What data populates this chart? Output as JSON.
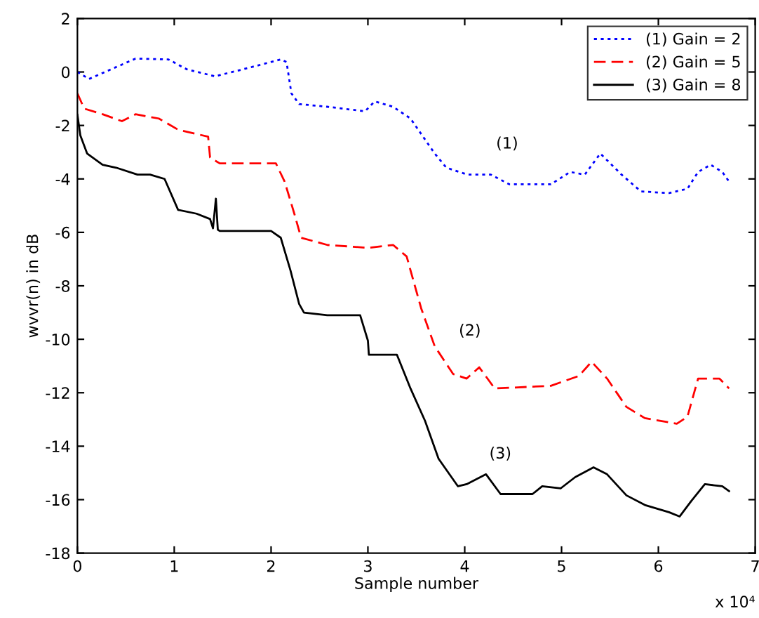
{
  "chart_data": {
    "type": "line",
    "xlabel": "Sample number",
    "ylabel": "wvvr(n) in dB",
    "xlim": [
      0,
      7
    ],
    "xticks": [
      0,
      1,
      2,
      3,
      4,
      5,
      6,
      7
    ],
    "ylim": [
      -18,
      2
    ],
    "yticks": [
      -18,
      -16,
      -14,
      -12,
      -10,
      -8,
      -6,
      -4,
      -2,
      0,
      2
    ],
    "grid": false,
    "legend": "top right",
    "marker": "none",
    "annotations": [
      "(1)",
      "(2)",
      "(3)",
      "x 10⁴"
    ],
    "series": [
      {
        "name": "(1) Gain = 2",
        "color": "#0000ff",
        "line_style": "dotted",
        "x": [
          0,
          0.12,
          0.6,
          0.94,
          1.13,
          1.42,
          1.71,
          2.1,
          2.16,
          2.21,
          2.29,
          2.58,
          2.97,
          3.07,
          3.26,
          3.44,
          3.69,
          3.81,
          4.03,
          4.27,
          4.46,
          4.89,
          5.09,
          5.24,
          5.4,
          5.62,
          5.82,
          6.11,
          6.3,
          6.41,
          6.54,
          6.66,
          6.73
        ],
        "values": [
          0,
          -0.26,
          0.5,
          0.47,
          0.1,
          -0.16,
          0.1,
          0.47,
          0.37,
          -0.8,
          -1.2,
          -1.3,
          -1.47,
          -1.1,
          -1.3,
          -1.74,
          -3.05,
          -3.58,
          -3.84,
          -3.84,
          -4.2,
          -4.2,
          -3.74,
          -3.84,
          -3.05,
          -3.84,
          -4.47,
          -4.53,
          -4.37,
          -3.74,
          -3.47,
          -3.74,
          -4.1
        ]
      },
      {
        "name": "(2) Gain = 5",
        "color": "#ff0000",
        "line_style": "dashed",
        "x": [
          0,
          0.07,
          0.26,
          0.46,
          0.6,
          0.84,
          1.04,
          1.35,
          1.37,
          1.47,
          2.05,
          2.14,
          2.24,
          2.31,
          2.58,
          3.01,
          3.26,
          3.4,
          3.55,
          3.69,
          3.88,
          4.02,
          4.15,
          4.31,
          4.89,
          5.18,
          5.31,
          5.47,
          5.67,
          5.86,
          6.19,
          6.3,
          6.41,
          6.63,
          6.73
        ],
        "values": [
          -0.8,
          -1.37,
          -1.58,
          -1.84,
          -1.58,
          -1.74,
          -2.16,
          -2.42,
          -3.2,
          -3.42,
          -3.42,
          -4.1,
          -5.3,
          -6.2,
          -6.47,
          -6.58,
          -6.47,
          -6.9,
          -8.84,
          -10.26,
          -11.3,
          -11.47,
          -11.05,
          -11.84,
          -11.74,
          -11.37,
          -10.84,
          -11.47,
          -12.53,
          -12.95,
          -13.16,
          -12.9,
          -11.47,
          -11.47,
          -11.84
        ]
      },
      {
        "name": "(3) Gain = 8",
        "color": "#000000",
        "line_style": "solid",
        "x": [
          0,
          0.03,
          0.1,
          0.26,
          0.4,
          0.62,
          0.75,
          0.9,
          1.04,
          1.23,
          1.37,
          1.4,
          1.43,
          1.45,
          1.47,
          2.0,
          2.1,
          2.2,
          2.29,
          2.34,
          2.58,
          2.92,
          3.0,
          3.01,
          3.3,
          3.44,
          3.59,
          3.73,
          3.93,
          4.02,
          4.22,
          4.37,
          4.7,
          4.8,
          4.99,
          5.14,
          5.33,
          5.47,
          5.67,
          5.86,
          6.11,
          6.22,
          6.34,
          6.48,
          6.66,
          6.73
        ],
        "values": [
          -1.6,
          -2.37,
          -3.05,
          -3.47,
          -3.58,
          -3.84,
          -3.84,
          -4.0,
          -5.16,
          -5.3,
          -5.5,
          -5.85,
          -4.74,
          -5.9,
          -5.95,
          -5.95,
          -6.2,
          -7.42,
          -8.68,
          -9.0,
          -9.1,
          -9.1,
          -10.05,
          -10.58,
          -10.58,
          -11.84,
          -13.05,
          -14.47,
          -15.5,
          -15.42,
          -15.05,
          -15.79,
          -15.79,
          -15.5,
          -15.58,
          -15.16,
          -14.79,
          -15.05,
          -15.84,
          -16.2,
          -16.47,
          -16.63,
          -16.05,
          -15.42,
          -15.5,
          -15.68
        ]
      }
    ]
  }
}
